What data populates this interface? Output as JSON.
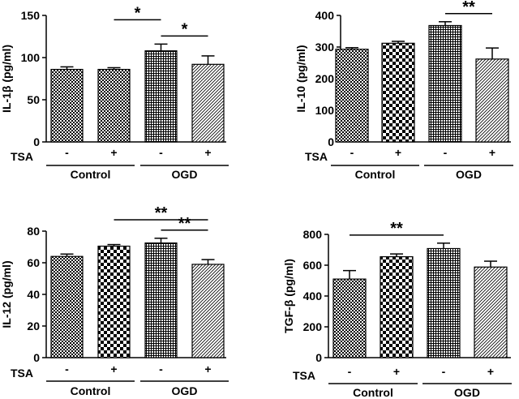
{
  "figure": {
    "colors": {
      "ink": "#000000",
      "background": "#ffffff"
    }
  },
  "chart_data": [
    {
      "type": "bar",
      "id": "il1b",
      "ylabel": "IL-1β (pg/ml)",
      "ylim": [
        0,
        150
      ],
      "yticks": [
        0,
        50,
        100,
        150
      ],
      "categories": [
        "-",
        "+",
        "-",
        "+"
      ],
      "treatment_label": "TSA",
      "groups": [
        {
          "label": "Control",
          "span": [
            0,
            1
          ]
        },
        {
          "label": "OGD",
          "span": [
            2,
            3
          ]
        }
      ],
      "values": [
        86,
        86,
        108,
        92
      ],
      "errors": [
        3,
        2,
        8,
        10
      ],
      "patterns": [
        "checker-fine",
        "checker-fine",
        "grid",
        "hatch"
      ],
      "significance": [
        {
          "from": 1,
          "to": 2,
          "label": "*"
        },
        {
          "from": 2,
          "to": 3,
          "label": "*"
        }
      ]
    },
    {
      "type": "bar",
      "id": "il10",
      "ylabel": "IL-10 (pg/ml)",
      "ylim": [
        0,
        400
      ],
      "yticks": [
        0,
        100,
        200,
        300,
        400
      ],
      "categories": [
        "-",
        "+",
        "-",
        "+"
      ],
      "treatment_label": "TSA",
      "groups": [
        {
          "label": "Control",
          "span": [
            0,
            1
          ]
        },
        {
          "label": "OGD",
          "span": [
            2,
            3
          ]
        }
      ],
      "values": [
        293,
        312,
        368,
        262
      ],
      "errors": [
        5,
        6,
        12,
        35
      ],
      "patterns": [
        "checker-fine",
        "checker-bold",
        "grid",
        "hatch"
      ],
      "significance": [
        {
          "from": 2,
          "to": 3,
          "label": "**"
        }
      ]
    },
    {
      "type": "bar",
      "id": "il12",
      "ylabel": "IL-12 (pg/ml)",
      "ylim": [
        0,
        80
      ],
      "yticks": [
        0,
        20,
        40,
        60,
        80
      ],
      "categories": [
        "-",
        "+",
        "-",
        "+"
      ],
      "treatment_label": "TSA",
      "groups": [
        {
          "label": "Control",
          "span": [
            0,
            1
          ]
        },
        {
          "label": "OGD",
          "span": [
            2,
            3
          ]
        }
      ],
      "values": [
        64,
        70.5,
        72.5,
        59
      ],
      "errors": [
        1.5,
        1,
        3,
        3
      ],
      "patterns": [
        "checker-fine",
        "checker-bold",
        "grid",
        "hatch"
      ],
      "significance": [
        {
          "from": 1,
          "to": 3,
          "label": "**"
        },
        {
          "from": 2,
          "to": 3,
          "label": "**"
        }
      ]
    },
    {
      "type": "bar",
      "id": "tgfb",
      "ylabel": "TGF-β (pg/ml)",
      "ylim": [
        0,
        800
      ],
      "yticks": [
        0,
        200,
        400,
        600,
        800
      ],
      "categories": [
        "-",
        "+",
        "-",
        "+"
      ],
      "treatment_label": "TSA",
      "groups": [
        {
          "label": "Control",
          "span": [
            0,
            1
          ]
        },
        {
          "label": "OGD",
          "span": [
            2,
            3
          ]
        }
      ],
      "values": [
        510,
        655,
        708,
        588
      ],
      "errors": [
        55,
        18,
        35,
        38
      ],
      "patterns": [
        "checker-fine",
        "checker-bold",
        "grid",
        "hatch"
      ],
      "significance": [
        {
          "from": 0,
          "to": 2,
          "label": "**"
        }
      ]
    }
  ]
}
